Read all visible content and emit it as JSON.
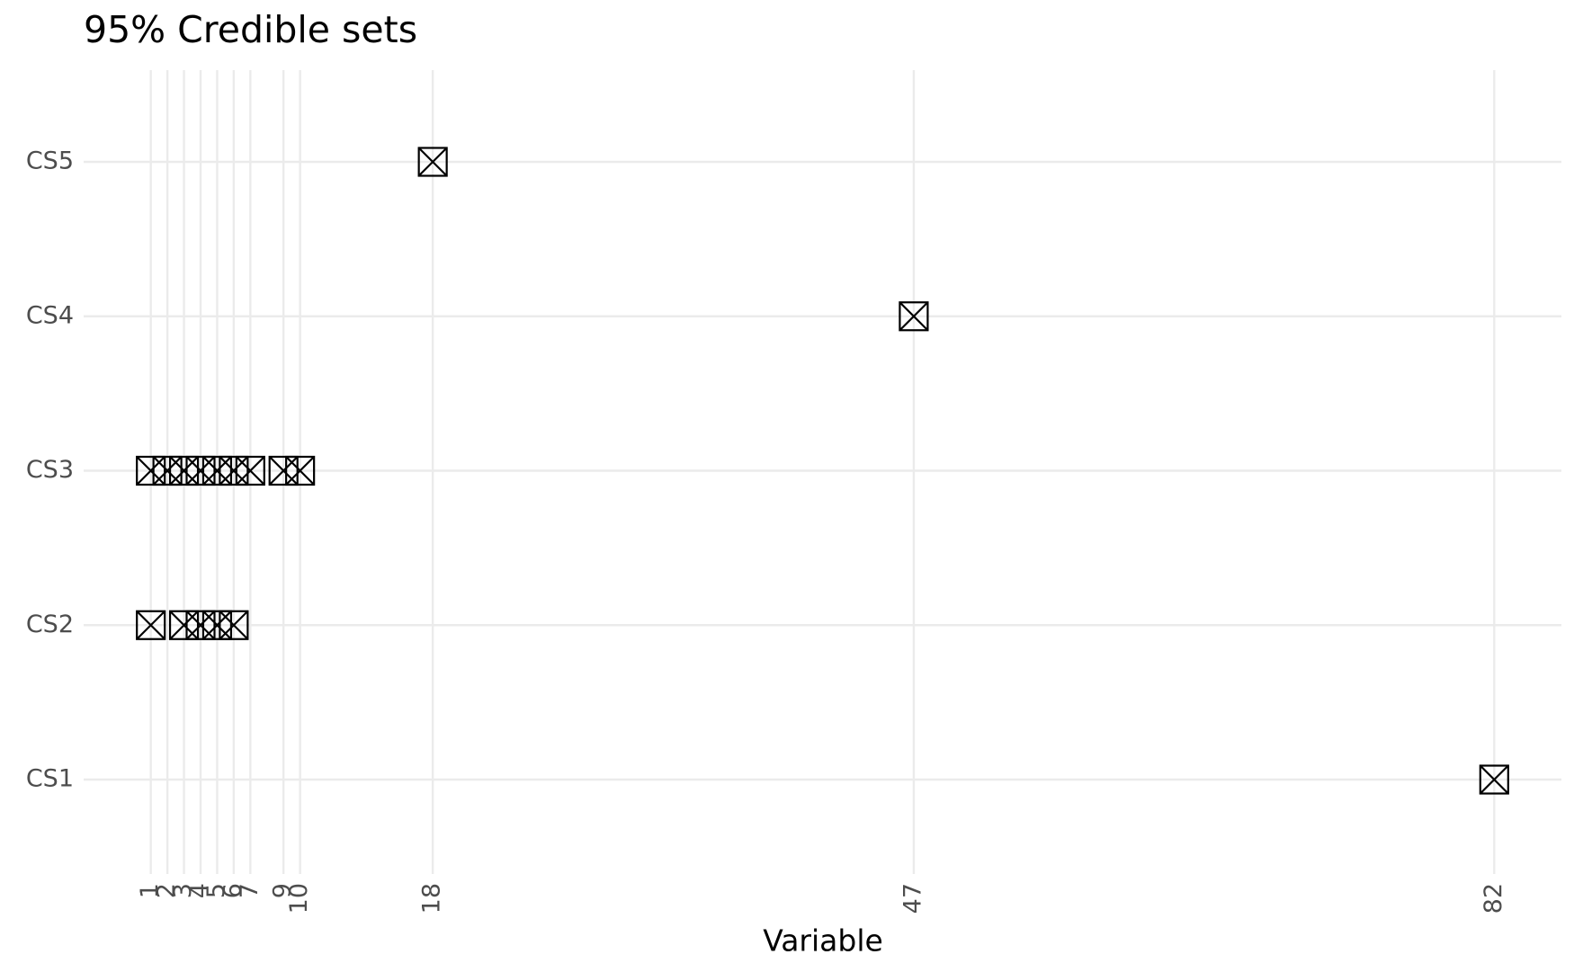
{
  "chart_data": {
    "type": "scatter",
    "title": "95% Credible sets",
    "x_label": "Variable",
    "categories": [
      "CS1",
      "CS2",
      "CS3",
      "CS4",
      "CS5"
    ],
    "x": [
      82,
      1,
      3,
      4,
      5,
      6,
      1,
      2,
      3,
      4,
      5,
      6,
      7,
      9,
      10,
      47,
      18
    ],
    "y": [
      "CS1",
      "CS2",
      "CS2",
      "CS2",
      "CS2",
      "CS2",
      "CS3",
      "CS3",
      "CS3",
      "CS3",
      "CS3",
      "CS3",
      "CS3",
      "CS3",
      "CS3",
      "CS4",
      "CS5"
    ],
    "xlim": [
      -3.05,
      86.05
    ],
    "xticks": [
      1,
      2,
      3,
      4,
      5,
      6,
      7,
      9,
      10,
      18,
      47,
      82
    ],
    "grid": true,
    "color": "#000000"
  }
}
